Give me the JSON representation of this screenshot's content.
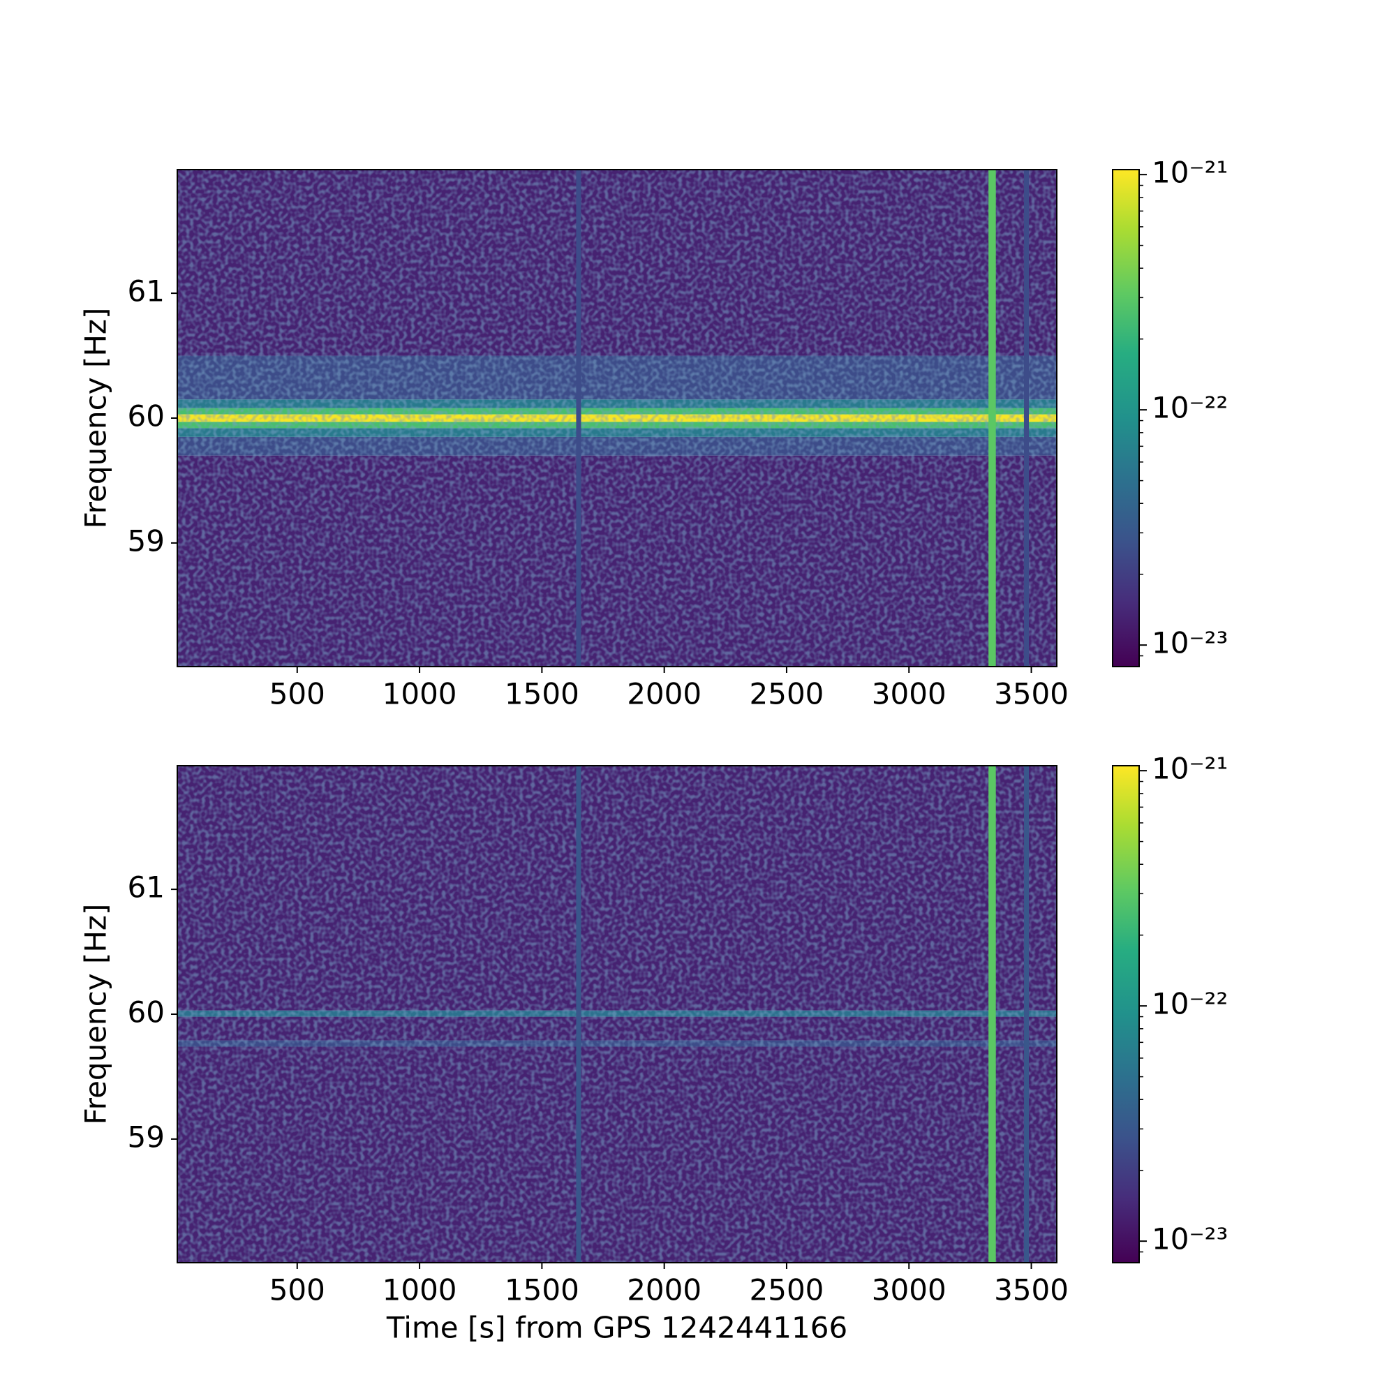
{
  "chart_data": [
    {
      "type": "spectrogram",
      "ylabel": "Frequency [Hz]",
      "colormap": "viridis",
      "xlim": [
        10,
        3604
      ],
      "ylim": [
        58.01,
        61.99
      ],
      "xticks": [
        500,
        1000,
        1500,
        2000,
        2500,
        3000,
        3500
      ],
      "yticks": [
        59,
        60,
        61
      ],
      "band_edges": [
        58.01,
        59.7,
        59.85,
        59.92,
        59.97,
        60.03,
        60.08,
        60.15,
        60.5,
        61.99
      ],
      "band_values": [
        1.3e-23,
        2.5e-23,
        6e-23,
        2.5e-22,
        1e-21,
        2.5e-22,
        6e-23,
        2.5e-23,
        1.3e-23
      ],
      "stripes": [
        {
          "t": [
            1640,
            1660
          ],
          "value": 2.5e-23
        },
        {
          "t": [
            3325,
            3355
          ],
          "value": 3e-22
        },
        {
          "t": [
            3470,
            3490
          ],
          "value": 2.5e-23
        }
      ],
      "colorbar": {
        "scale": "log",
        "lim": [
          8.1e-24,
          1.05e-21
        ],
        "ticks": [
          {
            "value": 1e-23,
            "label": "10⁻²³"
          },
          {
            "value": 1e-22,
            "label": "10⁻²²"
          },
          {
            "value": 1e-21,
            "label": "10⁻²¹"
          }
        ],
        "minor_ticks": [
          2e-23,
          3e-23,
          4e-23,
          5e-23,
          6e-23,
          7e-23,
          8e-23,
          9e-23,
          2e-22,
          3e-22,
          4e-22,
          5e-22,
          6e-22,
          7e-22,
          8e-22,
          9e-22,
          9e-24
        ]
      }
    },
    {
      "type": "spectrogram",
      "ylabel": "Frequency [Hz]",
      "xlabel": "Time [s] from GPS 1242441166",
      "colormap": "viridis",
      "xlim": [
        10,
        3604
      ],
      "ylim": [
        58.01,
        61.99
      ],
      "xticks": [
        500,
        1000,
        1500,
        2000,
        2500,
        3000,
        3500
      ],
      "yticks": [
        59,
        60,
        61
      ],
      "band_edges": [
        58.01,
        59.74,
        59.79,
        59.98,
        60.03,
        61.99
      ],
      "band_values": [
        1.3e-23,
        2.5e-23,
        1.3e-23,
        5e-23,
        1.3e-23
      ],
      "stripes": [
        {
          "t": [
            1640,
            1660
          ],
          "value": 3e-23
        },
        {
          "t": [
            3325,
            3355
          ],
          "value": 3e-22
        },
        {
          "t": [
            3470,
            3490
          ],
          "value": 3e-23
        }
      ],
      "colorbar": {
        "scale": "log",
        "lim": [
          8.1e-24,
          1.05e-21
        ],
        "ticks": [
          {
            "value": 1e-23,
            "label": "10⁻²³"
          },
          {
            "value": 1e-22,
            "label": "10⁻²²"
          },
          {
            "value": 1e-21,
            "label": "10⁻²¹"
          }
        ],
        "minor_ticks": [
          2e-23,
          3e-23,
          4e-23,
          5e-23,
          6e-23,
          7e-23,
          8e-23,
          9e-23,
          2e-22,
          3e-22,
          4e-22,
          5e-22,
          6e-22,
          7e-22,
          8e-22,
          9e-22,
          9e-24
        ]
      }
    }
  ]
}
